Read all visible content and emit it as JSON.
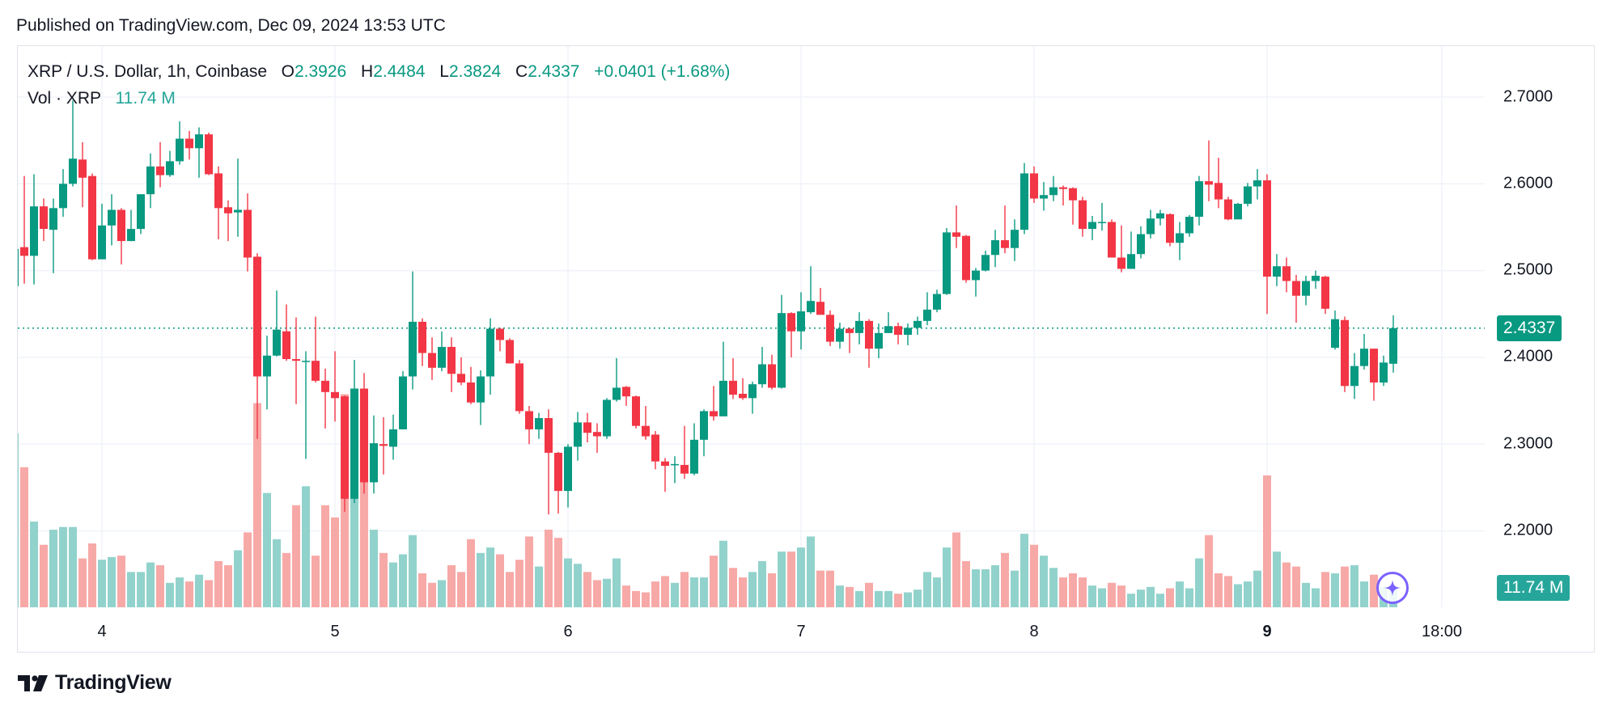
{
  "header": {
    "published": "Published on TradingView.com, Dec 09, 2024 13:53 UTC"
  },
  "legend": {
    "symbol": "XRP / U.S. Dollar, 1h, Coinbase",
    "o_label": "O",
    "o": "2.3926",
    "h_label": "H",
    "h": "2.4484",
    "l_label": "L",
    "l": "2.3824",
    "c_label": "C",
    "c": "2.4337",
    "change": "+0.0401 (+1.68%)",
    "vol_label": "Vol · XRP",
    "vol": "11.74 M"
  },
  "footer": {
    "brand": "TradingView"
  },
  "assistant_icon": "sparkle-icon",
  "colors": {
    "up": "#089981",
    "down": "#f23645",
    "up_volume": "#92d2cc",
    "down_volume": "#f7a9a7",
    "grid": "#f0f3fa",
    "assistant": "#7b61ff"
  },
  "chart_data": {
    "type": "candlestick",
    "title": "XRP / U.S. Dollar, 1h, Coinbase",
    "interval": "1h",
    "ylim": [
      2.2,
      2.7
    ],
    "y_ticks": [
      "2.7000",
      "2.6000",
      "2.5000",
      "2.4000",
      "2.3000",
      "2.2000"
    ],
    "x_ticks": [
      "4",
      "5",
      "6",
      "7",
      "8",
      "9",
      "18:00"
    ],
    "last_price_label": "2.4337",
    "last_volume_label": "11.74 M",
    "grid": true,
    "volume_unit": "M",
    "candles_ohlc": [
      [
        2.482,
        2.526,
        2.481,
        2.525
      ],
      [
        2.527,
        2.609,
        2.485,
        2.517
      ],
      [
        2.517,
        2.611,
        2.484,
        2.574
      ],
      [
        2.574,
        2.583,
        2.534,
        2.548
      ],
      [
        2.547,
        2.583,
        2.497,
        2.572
      ],
      [
        2.572,
        2.617,
        2.562,
        2.6
      ],
      [
        2.6,
        2.696,
        2.597,
        2.629
      ],
      [
        2.628,
        2.648,
        2.573,
        2.607
      ],
      [
        2.609,
        2.612,
        2.512,
        2.513
      ],
      [
        2.513,
        2.577,
        2.513,
        2.552
      ],
      [
        2.552,
        2.588,
        2.529,
        2.57
      ],
      [
        2.57,
        2.572,
        2.507,
        2.534
      ],
      [
        2.534,
        2.57,
        2.534,
        2.548
      ],
      [
        2.548,
        2.588,
        2.542,
        2.588
      ],
      [
        2.588,
        2.635,
        2.572,
        2.62
      ],
      [
        2.62,
        2.648,
        2.596,
        2.61
      ],
      [
        2.61,
        2.638,
        2.608,
        2.626
      ],
      [
        2.626,
        2.672,
        2.622,
        2.652
      ],
      [
        2.652,
        2.661,
        2.628,
        2.641
      ],
      [
        2.641,
        2.665,
        2.607,
        2.657
      ],
      [
        2.657,
        2.659,
        2.61,
        2.611
      ],
      [
        2.612,
        2.62,
        2.536,
        2.572
      ],
      [
        2.573,
        2.581,
        2.534,
        2.566
      ],
      [
        2.567,
        2.629,
        2.539,
        2.57
      ],
      [
        2.57,
        2.589,
        2.499,
        2.515
      ],
      [
        2.516,
        2.52,
        2.306,
        2.378
      ],
      [
        2.378,
        2.425,
        2.34,
        2.402
      ],
      [
        2.402,
        2.477,
        2.401,
        2.432
      ],
      [
        2.43,
        2.461,
        2.396,
        2.398
      ],
      [
        2.398,
        2.446,
        2.346,
        2.396
      ],
      [
        2.396,
        2.407,
        2.283,
        2.396
      ],
      [
        2.396,
        2.447,
        2.371,
        2.373
      ],
      [
        2.373,
        2.387,
        2.318,
        2.36
      ],
      [
        2.36,
        2.407,
        2.326,
        2.353
      ],
      [
        2.355,
        2.356,
        2.222,
        2.237
      ],
      [
        2.237,
        2.397,
        2.232,
        2.364
      ],
      [
        2.364,
        2.382,
        2.243,
        2.256
      ],
      [
        2.256,
        2.333,
        2.243,
        2.301
      ],
      [
        2.3,
        2.331,
        2.265,
        2.298
      ],
      [
        2.297,
        2.334,
        2.282,
        2.317
      ],
      [
        2.317,
        2.384,
        2.317,
        2.378
      ],
      [
        2.378,
        2.499,
        2.363,
        2.441
      ],
      [
        2.441,
        2.445,
        2.39,
        2.405
      ],
      [
        2.405,
        2.423,
        2.374,
        2.388
      ],
      [
        2.388,
        2.43,
        2.384,
        2.412
      ],
      [
        2.412,
        2.423,
        2.36,
        2.381
      ],
      [
        2.381,
        2.4,
        2.368,
        2.371
      ],
      [
        2.371,
        2.389,
        2.346,
        2.348
      ],
      [
        2.348,
        2.385,
        2.322,
        2.378
      ],
      [
        2.378,
        2.445,
        2.357,
        2.433
      ],
      [
        2.433,
        2.434,
        2.407,
        2.42
      ],
      [
        2.42,
        2.422,
        2.393,
        2.393
      ],
      [
        2.393,
        2.397,
        2.335,
        2.338
      ],
      [
        2.338,
        2.344,
        2.3,
        2.317
      ],
      [
        2.317,
        2.336,
        2.306,
        2.33
      ],
      [
        2.33,
        2.34,
        2.219,
        2.29
      ],
      [
        2.29,
        2.291,
        2.22,
        2.246
      ],
      [
        2.246,
        2.3,
        2.227,
        2.297
      ],
      [
        2.297,
        2.337,
        2.281,
        2.325
      ],
      [
        2.325,
        2.336,
        2.302,
        2.313
      ],
      [
        2.314,
        2.324,
        2.29,
        2.309
      ],
      [
        2.309,
        2.353,
        2.306,
        2.351
      ],
      [
        2.351,
        2.399,
        2.349,
        2.365
      ],
      [
        2.366,
        2.367,
        2.344,
        2.355
      ],
      [
        2.355,
        2.356,
        2.318,
        2.321
      ],
      [
        2.321,
        2.344,
        2.305,
        2.309
      ],
      [
        2.311,
        2.315,
        2.271,
        2.28
      ],
      [
        2.28,
        2.284,
        2.245,
        2.275
      ],
      [
        2.276,
        2.286,
        2.255,
        2.277
      ],
      [
        2.276,
        2.321,
        2.26,
        2.266
      ],
      [
        2.266,
        2.324,
        2.264,
        2.305
      ],
      [
        2.305,
        2.34,
        2.286,
        2.338
      ],
      [
        2.338,
        2.367,
        2.327,
        2.332
      ],
      [
        2.332,
        2.418,
        2.332,
        2.373
      ],
      [
        2.373,
        2.399,
        2.352,
        2.357
      ],
      [
        2.358,
        2.376,
        2.351,
        2.353
      ],
      [
        2.353,
        2.372,
        2.335,
        2.369
      ],
      [
        2.369,
        2.412,
        2.365,
        2.392
      ],
      [
        2.392,
        2.403,
        2.363,
        2.365
      ],
      [
        2.365,
        2.472,
        2.364,
        2.451
      ],
      [
        2.451,
        2.452,
        2.4,
        2.43
      ],
      [
        2.43,
        2.475,
        2.409,
        2.453
      ],
      [
        2.452,
        2.505,
        2.45,
        2.465
      ],
      [
        2.464,
        2.48,
        2.457,
        2.449
      ],
      [
        2.449,
        2.454,
        2.413,
        2.418
      ],
      [
        2.418,
        2.44,
        2.41,
        2.433
      ],
      [
        2.433,
        2.434,
        2.405,
        2.428
      ],
      [
        2.428,
        2.452,
        2.415,
        2.442
      ],
      [
        2.442,
        2.444,
        2.388,
        2.41
      ],
      [
        2.41,
        2.439,
        2.399,
        2.428
      ],
      [
        2.428,
        2.452,
        2.428,
        2.436
      ],
      [
        2.436,
        2.44,
        2.415,
        2.426
      ],
      [
        2.426,
        2.439,
        2.414,
        2.434
      ],
      [
        2.434,
        2.447,
        2.426,
        2.442
      ],
      [
        2.442,
        2.475,
        2.437,
        2.455
      ],
      [
        2.455,
        2.478,
        2.452,
        2.473
      ],
      [
        2.473,
        2.549,
        2.472,
        2.544
      ],
      [
        2.544,
        2.575,
        2.526,
        2.539
      ],
      [
        2.54,
        2.541,
        2.486,
        2.489
      ],
      [
        2.489,
        2.503,
        2.47,
        2.5
      ],
      [
        2.5,
        2.523,
        2.499,
        2.518
      ],
      [
        2.518,
        2.547,
        2.504,
        2.535
      ],
      [
        2.535,
        2.575,
        2.52,
        2.526
      ],
      [
        2.526,
        2.559,
        2.511,
        2.547
      ],
      [
        2.547,
        2.624,
        2.542,
        2.612
      ],
      [
        2.612,
        2.62,
        2.578,
        2.583
      ],
      [
        2.583,
        2.602,
        2.569,
        2.587
      ],
      [
        2.587,
        2.609,
        2.58,
        2.596
      ],
      [
        2.596,
        2.598,
        2.575,
        2.594
      ],
      [
        2.595,
        2.596,
        2.553,
        2.581
      ],
      [
        2.581,
        2.585,
        2.539,
        2.548
      ],
      [
        2.548,
        2.563,
        2.535,
        2.556
      ],
      [
        2.556,
        2.578,
        2.546,
        2.556
      ],
      [
        2.556,
        2.559,
        2.515,
        2.515
      ],
      [
        2.515,
        2.552,
        2.498,
        2.502
      ],
      [
        2.502,
        2.545,
        2.502,
        2.519
      ],
      [
        2.519,
        2.551,
        2.514,
        2.542
      ],
      [
        2.542,
        2.57,
        2.537,
        2.56
      ],
      [
        2.56,
        2.57,
        2.552,
        2.566
      ],
      [
        2.565,
        2.566,
        2.528,
        2.532
      ],
      [
        2.532,
        2.556,
        2.512,
        2.543
      ],
      [
        2.543,
        2.564,
        2.539,
        2.562
      ],
      [
        2.562,
        2.609,
        2.552,
        2.603
      ],
      [
        2.603,
        2.65,
        2.58,
        2.599
      ],
      [
        2.601,
        2.63,
        2.572,
        2.582
      ],
      [
        2.582,
        2.585,
        2.558,
        2.559
      ],
      [
        2.559,
        2.578,
        2.559,
        2.577
      ],
      [
        2.577,
        2.601,
        2.574,
        2.597
      ],
      [
        2.597,
        2.617,
        2.582,
        2.604
      ],
      [
        2.604,
        2.611,
        2.45,
        2.493
      ],
      [
        2.493,
        2.519,
        2.482,
        2.505
      ],
      [
        2.505,
        2.515,
        2.475,
        2.488
      ],
      [
        2.488,
        2.495,
        2.44,
        2.471
      ],
      [
        2.471,
        2.494,
        2.46,
        2.488
      ],
      [
        2.488,
        2.5,
        2.479,
        2.494
      ],
      [
        2.493,
        2.494,
        2.45,
        2.456
      ],
      [
        2.411,
        2.454,
        2.409,
        2.444
      ],
      [
        2.443,
        2.447,
        2.36,
        2.367
      ],
      [
        2.367,
        2.405,
        2.352,
        2.39
      ],
      [
        2.39,
        2.427,
        2.386,
        2.41
      ],
      [
        2.41,
        2.41,
        2.35,
        2.371
      ],
      [
        2.371,
        2.402,
        2.367,
        2.394
      ],
      [
        2.3926,
        2.4484,
        2.3824,
        2.4337
      ]
    ],
    "volumes": [
      102.5,
      82.5,
      50.5,
      36.8,
      45.7,
      47.3,
      47.3,
      28.8,
      37.6,
      28.0,
      29.6,
      30.4,
      20.8,
      20.8,
      26.4,
      24.8,
      14.4,
      17.6,
      15.2,
      19.2,
      16.0,
      27.2,
      24.8,
      33.6,
      44.1,
      120.2,
      67.3,
      40.1,
      32.0,
      60.1,
      71.3,
      30.4,
      60.1,
      52.9,
      125.5,
      91.3,
      77.7,
      45.7,
      32.0,
      26.4,
      31.2,
      42.5,
      20.0,
      14.4,
      16.0,
      24.8,
      20.8,
      40.1,
      32.0,
      35.2,
      31.2,
      20.8,
      28.0,
      41.7,
      24.0,
      45.7,
      40.9,
      28.8,
      25.6,
      20.8,
      16.0,
      16.8,
      28.8,
      12.8,
      9.6,
      8.8,
      15.2,
      18.4,
      14.4,
      20.8,
      17.6,
      17.6,
      30.4,
      39.2,
      23.2,
      17.6,
      20.8,
      27.2,
      20.0,
      32.8,
      32.8,
      35.2,
      41.7,
      21.6,
      21.6,
      12.8,
      12.0,
      9.6,
      14.4,
      9.6,
      9.6,
      8.0,
      8.8,
      10.4,
      20.8,
      17.6,
      35.2,
      44.1,
      27.2,
      22.4,
      22.4,
      24.8,
      32.0,
      21.6,
      43.3,
      36.8,
      30.4,
      23.2,
      17.6,
      20.0,
      17.6,
      12.8,
      11.2,
      14.4,
      12.8,
      8.0,
      10.4,
      12.0,
      8.0,
      11.2,
      15.2,
      11.2,
      28.8,
      42.5,
      20.0,
      18.4,
      13.6,
      15.2,
      21.6,
      77.7,
      32.8,
      26.4,
      24.0,
      14.4,
      11.2,
      20.8,
      20.0,
      24.0,
      24.8,
      15.2,
      19.2,
      12.0,
      11.74
    ]
  }
}
